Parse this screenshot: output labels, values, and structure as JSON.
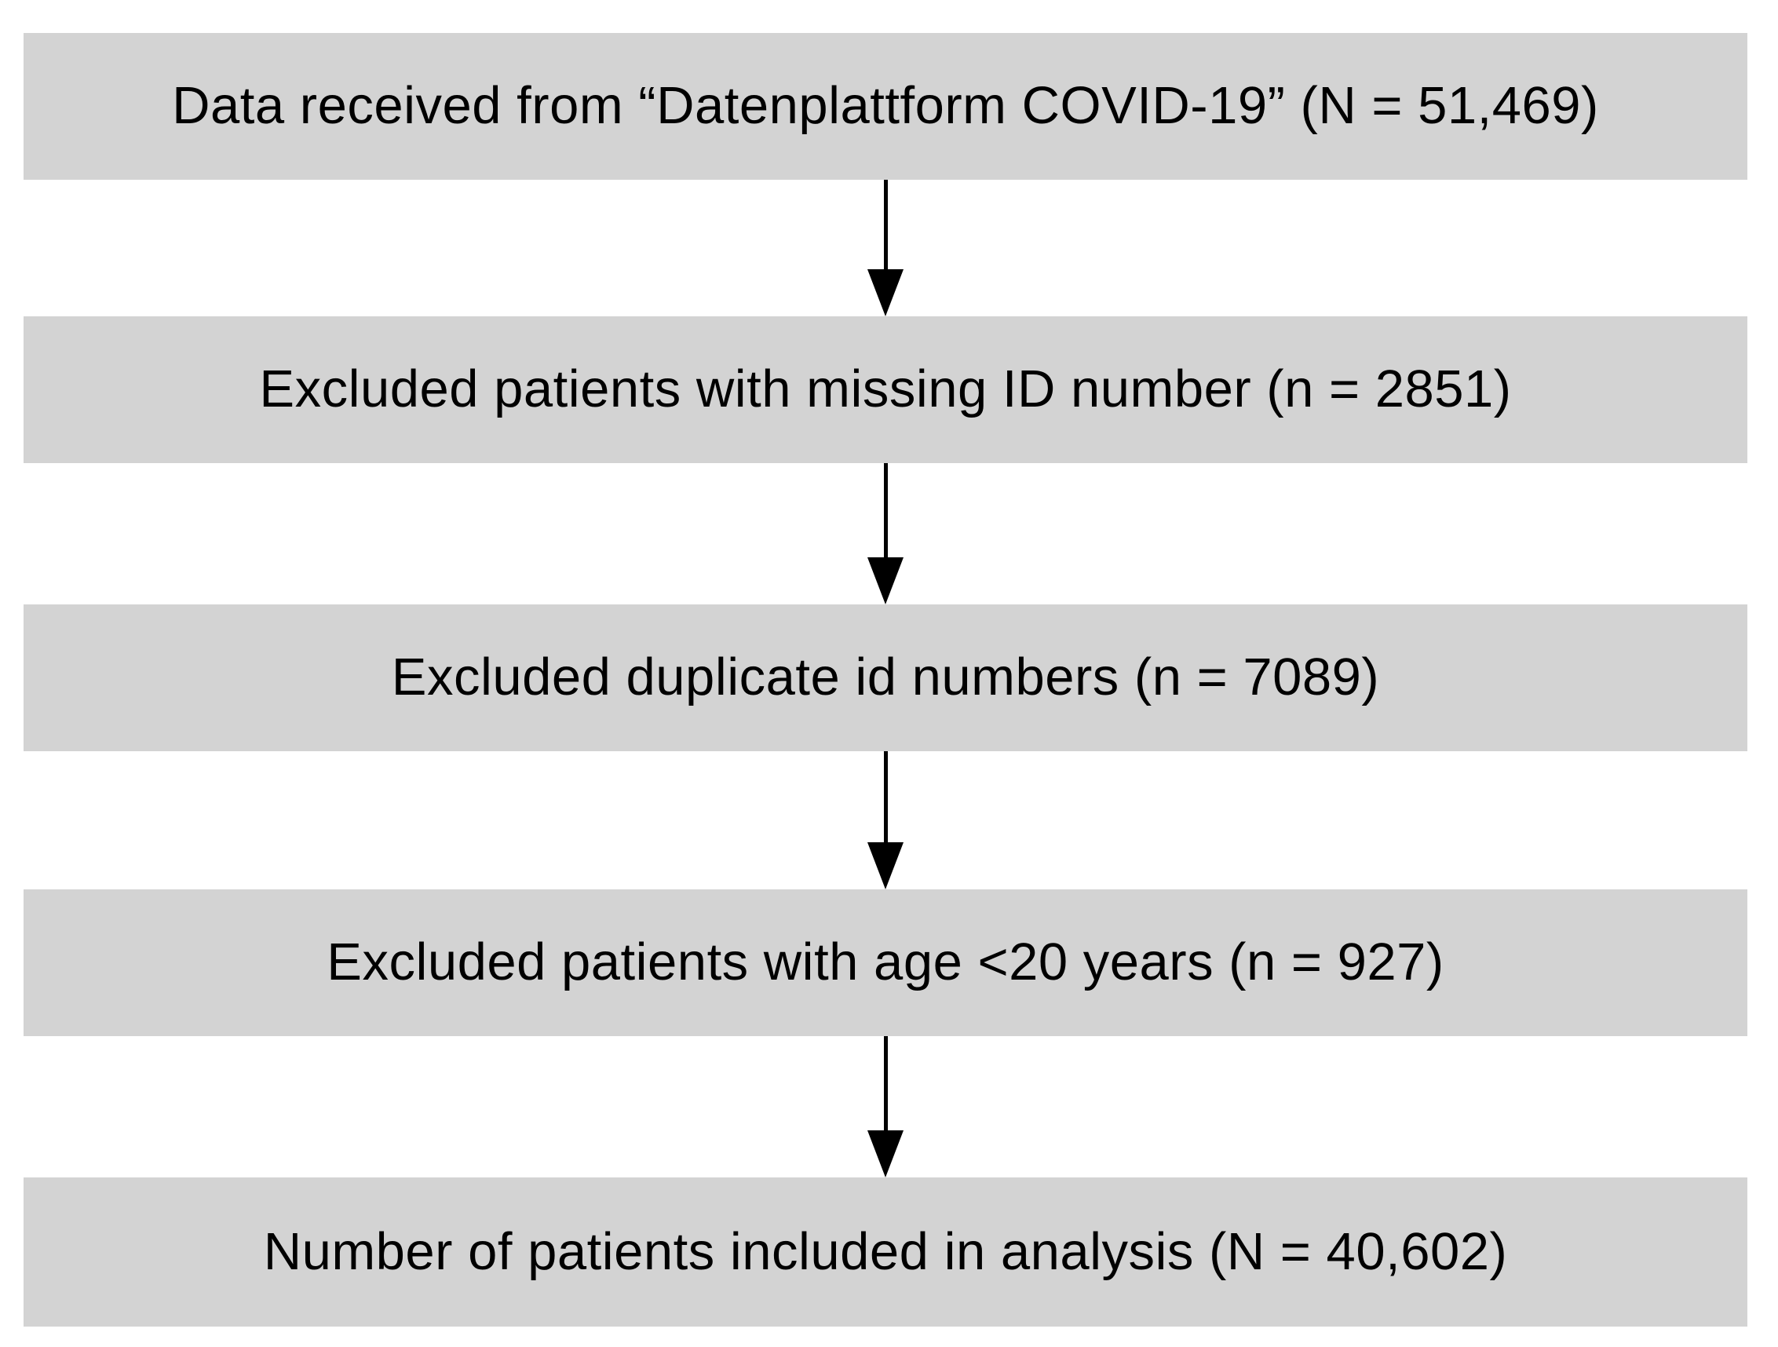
{
  "diagram": {
    "type": "flowchart",
    "direction": "top-to-bottom",
    "colors": {
      "box_fill": "#d3d3d3",
      "text": "#000000",
      "arrow": "#000000",
      "background": "#ffffff"
    },
    "steps": [
      {
        "label": "Data received from “Datenplattform COVID-19” (N = 51,469)"
      },
      {
        "label": "Excluded patients with missing ID number (n = 2851)"
      },
      {
        "label": "Excluded duplicate id numbers (n = 7089)"
      },
      {
        "label": "Excluded patients with age <20 years (n = 927)"
      },
      {
        "label": "Number of patients included in analysis (N = 40,602)"
      }
    ],
    "connectors": [
      {
        "from": 0,
        "to": 1,
        "style": "solid-down-arrow"
      },
      {
        "from": 1,
        "to": 2,
        "style": "solid-down-arrow"
      },
      {
        "from": 2,
        "to": 3,
        "style": "solid-down-arrow"
      },
      {
        "from": 3,
        "to": 4,
        "style": "solid-down-arrow"
      }
    ]
  }
}
